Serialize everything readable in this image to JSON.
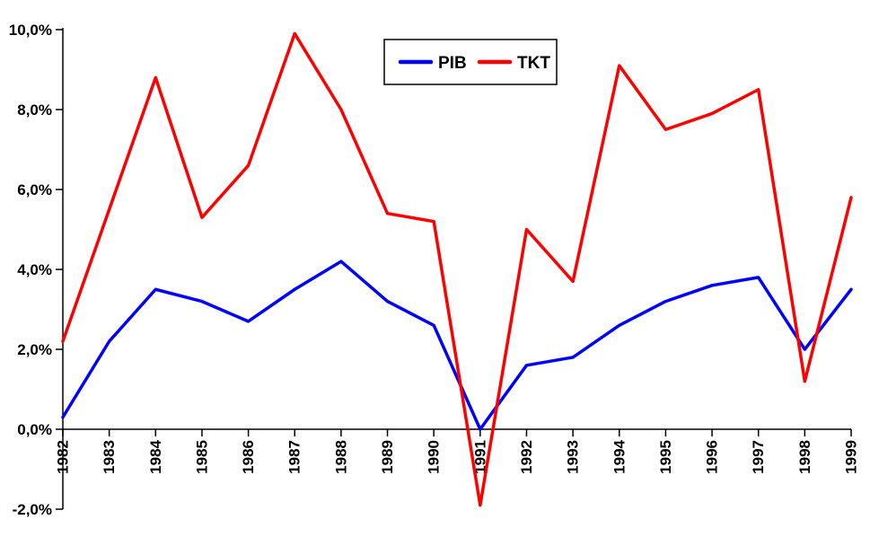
{
  "chart_data": {
    "type": "line",
    "title": "",
    "xlabel": "",
    "ylabel": "",
    "categories": [
      "1982",
      "1983",
      "1984",
      "1985",
      "1986",
      "1987",
      "1988",
      "1989",
      "1990",
      "1991",
      "1992",
      "1993",
      "1994",
      "1995",
      "1996",
      "1997",
      "1998",
      "1999"
    ],
    "series": [
      {
        "name": "PIB",
        "color": "#0000ff",
        "values": [
          0.3,
          2.2,
          3.5,
          3.2,
          2.7,
          3.5,
          4.2,
          3.2,
          2.6,
          0.0,
          1.6,
          1.8,
          2.6,
          3.2,
          3.6,
          3.8,
          2.0,
          3.5
        ]
      },
      {
        "name": "TKT",
        "color": "#ff0000",
        "values": [
          2.2,
          5.5,
          8.8,
          5.3,
          6.6,
          9.9,
          8.0,
          5.4,
          5.2,
          -1.9,
          5.0,
          3.7,
          9.1,
          7.5,
          7.9,
          8.5,
          1.2,
          5.8
        ]
      }
    ],
    "ylim": [
      -2,
      10
    ],
    "ytick_step": 2,
    "ytick_labels": [
      "10,0%",
      "8,0%",
      "6,0%",
      "4,0%",
      "2,0%",
      "0,0%",
      "-2,0%"
    ],
    "value_suffix": "%",
    "decimal_separator": ",",
    "grid": false,
    "legend_position": "top-center",
    "axis_color": "#000000",
    "background_color": "#ffffff"
  }
}
